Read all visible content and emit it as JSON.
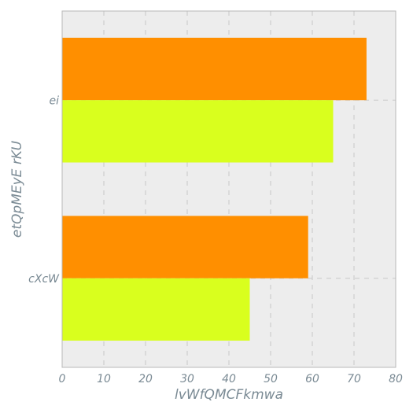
{
  "chart_data": {
    "type": "bar",
    "orientation": "horizontal",
    "categories": [
      "ei",
      "cXcW"
    ],
    "series": [
      {
        "values": [
          73,
          59
        ],
        "color": "#ff8f00"
      },
      {
        "values": [
          65,
          45
        ],
        "color": "#d9ff1e"
      }
    ],
    "xlabel": "lvWfQMCFkmwa",
    "ylabel": "etQpMEyE rKU",
    "xlim": [
      0,
      80
    ],
    "xticks": [
      0,
      10,
      20,
      30,
      40,
      50,
      60,
      70,
      80
    ],
    "grid": true,
    "colors": {
      "plot_background": "#ededed",
      "grid": "#c8c8c8",
      "axis_text": "#7a8a94"
    }
  }
}
